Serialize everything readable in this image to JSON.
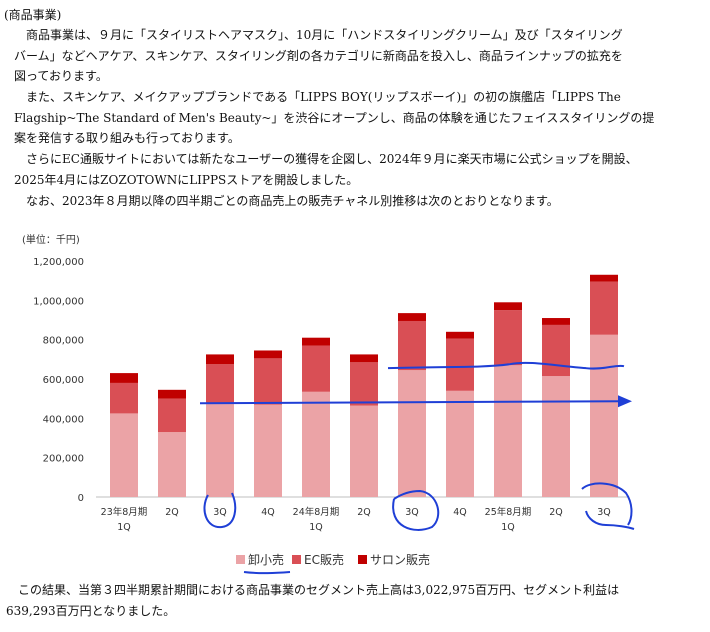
{
  "section_title": "(商品事業)",
  "paragraphs": {
    "p1": [
      "商品事業は、９月に「スタイリストヘアマスク」、10月に「ハンドスタイリングクリーム」及び「スタイリング",
      "バーム」などヘアケア、スキンケア、スタイリング剤の各カテゴリに新商品を投入し、商品ラインナップの拡充を",
      "図っております。"
    ],
    "p2": [
      "また、スキンケア、メイクアップブランドである「LIPPS BOY(リップスボーイ)」の初の旗艦店「LIPPS The",
      "Flagship~The Standard of Men's Beauty~」を渋谷にオープンし、商品の体験を通じたフェイススタイリングの提",
      "案を発信する取り組みも行っております。"
    ],
    "p3": [
      "さらにEC通販サイトにおいては新たなユーザーの獲得を企図し、2024年９月に楽天市場に公式ショップを開設、",
      "2025年4月にはZOZOTOWNにLIPPSストアを開設しました。"
    ],
    "p5": "なお、2023年８月期以降の四半期ごとの商品売上の販売チャネル別推移は次のとおりとなります。",
    "p6": [
      "この結果、当第３四半期累計期間における商品事業のセグメント売上高は3,022,975百万円、セグメント利益は",
      "639,293百万円となりました。"
    ]
  },
  "chart_data": {
    "type": "bar",
    "stacked": true,
    "unit_label": "(単位：千円)",
    "ylim": [
      0,
      1200000
    ],
    "yticks": [
      "0",
      "200,000",
      "400,000",
      "600,000",
      "800,000",
      "1,000,000",
      "1,200,000"
    ],
    "categories": [
      [
        "23年8月期",
        "1Q"
      ],
      [
        "2Q"
      ],
      [
        "3Q"
      ],
      [
        "4Q"
      ],
      [
        "24年8月期",
        "1Q"
      ],
      [
        "2Q"
      ],
      [
        "3Q"
      ],
      [
        "4Q"
      ],
      [
        "25年8月期",
        "1Q"
      ],
      [
        "2Q"
      ],
      [
        "3Q"
      ]
    ],
    "series": [
      {
        "name": "卸小売",
        "color": "#eba3a6",
        "values": [
          425000,
          330000,
          480000,
          470000,
          535000,
          465000,
          645000,
          540000,
          670000,
          615000,
          825000
        ]
      },
      {
        "name": "EC販売",
        "color": "#d94f55",
        "values": [
          155000,
          170000,
          195000,
          235000,
          235000,
          220000,
          250000,
          265000,
          280000,
          260000,
          270000
        ]
      },
      {
        "name": "サロン販売",
        "color": "#c00000",
        "values": [
          50000,
          45000,
          50000,
          40000,
          40000,
          40000,
          40000,
          35000,
          40000,
          35000,
          35000
        ]
      }
    ],
    "legend_position": "bottom",
    "annotations": "blue hand-drawn circles under 3Q labels, underline under 卸小売, horizontal arrow from 3Q (23年) to 3Q (25年), wavy line over 24年3Q-25年3Q"
  }
}
